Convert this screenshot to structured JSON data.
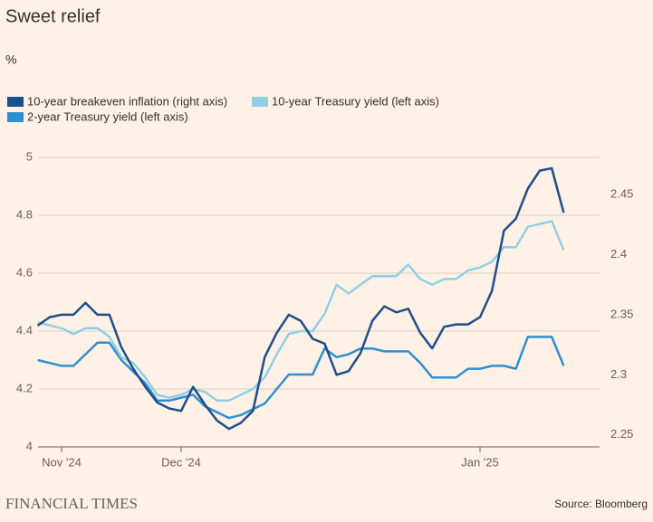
{
  "chart_data": {
    "type": "line",
    "title": "Sweet relief",
    "subtitle": "%",
    "source": "Source: Bloomberg",
    "brand": "FINANCIAL TIMES",
    "categories": [
      null,
      null,
      "Nov '24",
      null,
      null,
      null,
      null,
      null,
      null,
      null,
      null,
      null,
      "Dec '24",
      null,
      null,
      null,
      null,
      null,
      null,
      null,
      null,
      null,
      null,
      null,
      null,
      null,
      null,
      null,
      null,
      null,
      null,
      null,
      null,
      null,
      null,
      null,
      null,
      "Jan '25",
      null,
      null,
      null,
      null,
      null,
      null,
      null
    ],
    "series": [
      {
        "name": "10-year breakeven inflation (right axis)",
        "color": "#1f4e8c",
        "axis": "y2",
        "values": [
          2.341,
          2.348,
          2.35,
          2.35,
          2.36,
          2.35,
          2.35,
          2.323,
          2.305,
          2.29,
          2.277,
          2.272,
          2.27,
          2.29,
          2.275,
          2.262,
          2.255,
          2.26,
          2.27,
          2.315,
          2.335,
          2.35,
          2.345,
          2.33,
          2.326,
          2.3,
          2.303,
          2.318,
          2.345,
          2.357,
          2.352,
          2.355,
          2.335,
          2.322,
          2.34,
          2.342,
          2.342,
          2.348,
          2.37,
          2.42,
          2.43,
          2.455,
          2.47,
          2.472,
          2.435
        ]
      },
      {
        "name": "10-year Treasury yield (left axis)",
        "color": "#8fd0e6",
        "values": [
          4.43,
          4.42,
          4.41,
          4.39,
          4.41,
          4.41,
          4.38,
          4.31,
          4.29,
          4.24,
          4.18,
          4.17,
          4.18,
          4.2,
          4.19,
          4.16,
          4.16,
          4.18,
          4.2,
          4.24,
          4.32,
          4.39,
          4.4,
          4.4,
          4.46,
          4.56,
          4.53,
          4.56,
          4.59,
          4.59,
          4.59,
          4.63,
          4.58,
          4.56,
          4.58,
          4.58,
          4.61,
          4.62,
          4.64,
          4.69,
          4.69,
          4.76,
          4.77,
          4.78,
          4.68
        ]
      },
      {
        "name": "2-year Treasury yield (left axis)",
        "color": "#2e8fd0",
        "values": [
          4.3,
          4.29,
          4.28,
          4.28,
          4.32,
          4.36,
          4.36,
          4.3,
          4.26,
          4.22,
          4.16,
          4.16,
          4.17,
          4.18,
          4.14,
          4.12,
          4.1,
          4.11,
          4.13,
          4.15,
          4.2,
          4.25,
          4.25,
          4.25,
          4.34,
          4.31,
          4.32,
          4.34,
          4.34,
          4.33,
          4.33,
          4.33,
          4.29,
          4.24,
          4.24,
          4.24,
          4.27,
          4.27,
          4.28,
          4.28,
          4.27,
          4.38,
          4.38,
          4.38,
          4.28
        ]
      }
    ],
    "ylim": [
      4,
      5
    ],
    "yticks": [
      4,
      4.2,
      4.4,
      4.6,
      4.8,
      5
    ],
    "y2lim": [
      2.24,
      2.481
    ],
    "y2ticks": [
      2.25,
      2.3,
      2.35,
      2.4,
      2.45
    ],
    "grid": true
  }
}
